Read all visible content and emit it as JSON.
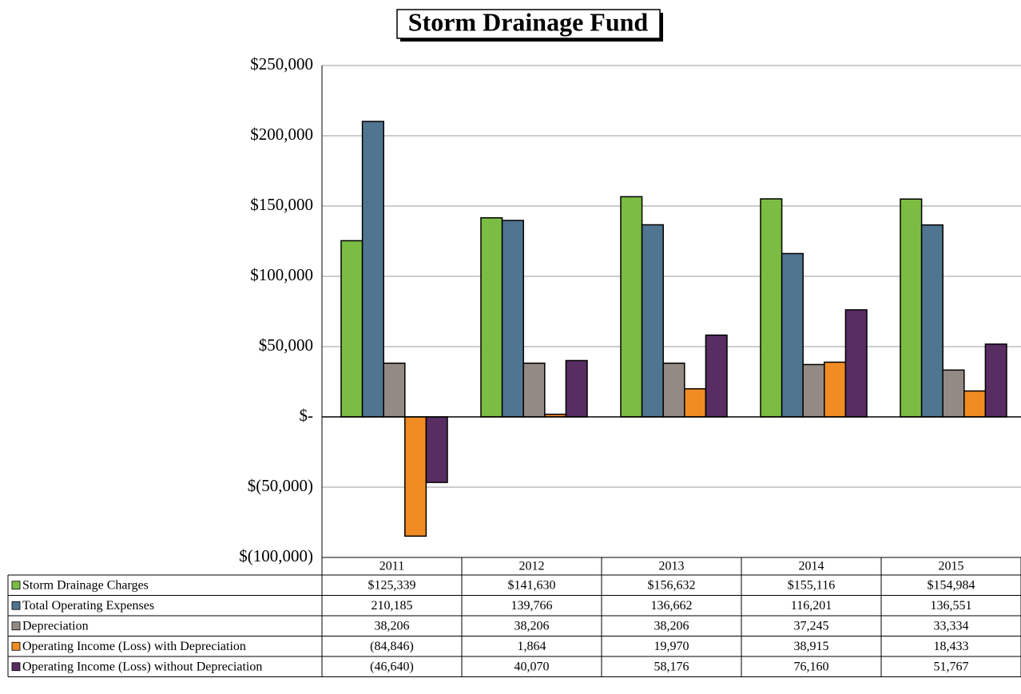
{
  "chart_data": {
    "type": "bar",
    "title": "Storm Drainage Fund",
    "categories": [
      "2011",
      "2012",
      "2013",
      "2014",
      "2015"
    ],
    "series": [
      {
        "name": "Storm Drainage Charges",
        "color": "#7bbd42",
        "values": [
          125339,
          141630,
          156632,
          155116,
          154984
        ],
        "value_labels": [
          "$125,339",
          "$141,630",
          "$156,632",
          "$155,116",
          "$154,984"
        ]
      },
      {
        "name": "Total Operating Expenses",
        "color": "#4f7590",
        "values": [
          210185,
          139766,
          136662,
          116201,
          136551
        ],
        "value_labels": [
          "210,185",
          "139,766",
          "136,662",
          "116,201",
          "136,551"
        ]
      },
      {
        "name": "Depreciation",
        "color": "#948a84",
        "values": [
          38206,
          38206,
          38206,
          37245,
          33334
        ],
        "value_labels": [
          "38,206",
          "38,206",
          "38,206",
          "37,245",
          "33,334"
        ]
      },
      {
        "name": "Operating Income (Loss) with Depreciation",
        "color": "#f08c22",
        "values": [
          -84846,
          1864,
          19970,
          38915,
          18433
        ],
        "value_labels": [
          "(84,846)",
          "1,864",
          "19,970",
          "38,915",
          "18,433"
        ]
      },
      {
        "name": "Operating Income (Loss) without Depreciation",
        "color": "#572d62",
        "values": [
          -46640,
          40070,
          58176,
          76160,
          51767
        ],
        "value_labels": [
          "(46,640)",
          "40,070",
          "58,176",
          "76,160",
          "51,767"
        ]
      }
    ],
    "ylim": [
      -100000,
      250000
    ],
    "yticks": [
      {
        "value": -100000,
        "label": "$(100,000)"
      },
      {
        "value": -50000,
        "label": "$(50,000)"
      },
      {
        "value": 0,
        "label": "$-"
      },
      {
        "value": 50000,
        "label": "$50,000"
      },
      {
        "value": 100000,
        "label": "$100,000"
      },
      {
        "value": 150000,
        "label": "$150,000"
      },
      {
        "value": 200000,
        "label": "$200,000"
      },
      {
        "value": 250000,
        "label": "$250,000"
      }
    ],
    "grid": true
  }
}
